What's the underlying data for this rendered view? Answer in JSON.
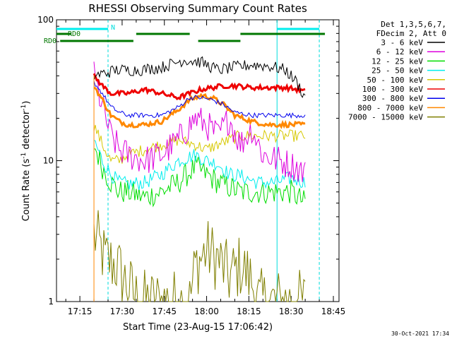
{
  "chart_data": {
    "type": "line",
    "title": "RHESSI Observing Summary Count Rates",
    "xlabel": "Start Time (23-Aug-15 17:06:42)",
    "ylabel": "Count Rate (s⁻¹ detector⁻¹)",
    "ylabel_main": "Count Rate (s",
    "ylabel_sup1": "-1",
    "ylabel_mid": " detector",
    "ylabel_sup2": "-1",
    "ylabel_end": ")",
    "y_scale": "log",
    "ylim": [
      1,
      100
    ],
    "xlim": [
      "17:06:42",
      "18:47:00"
    ],
    "x_ticks": [
      "17:15",
      "17:30",
      "17:45",
      "18:00",
      "18:15",
      "18:30",
      "18:45"
    ],
    "y_ticks": [
      "1",
      "10",
      "100"
    ],
    "legend_header": [
      "Det 1,3,5,6,7,",
      "FDecim 2, Att 0"
    ],
    "legend_position": "right",
    "footer_date": "30-Oct-2021 17:34",
    "markers": {
      "N": "N",
      "RD0a": "RD0",
      "RD0b": "RD0"
    },
    "series": [
      {
        "name": "3 - 6 keV",
        "color": "#000000",
        "key": "s1",
        "points": [
          [
            0,
            40
          ],
          [
            8,
            44
          ],
          [
            16,
            44
          ],
          [
            24,
            46
          ],
          [
            32,
            52
          ],
          [
            38,
            50
          ],
          [
            44,
            44
          ],
          [
            50,
            46
          ],
          [
            56,
            48
          ],
          [
            62,
            47
          ],
          [
            68,
            44
          ],
          [
            72,
            36
          ],
          [
            75,
            28
          ]
        ]
      },
      {
        "name": "6 - 12 keV",
        "color": "#dd00dd",
        "key": "s2",
        "points": [
          [
            0,
            40
          ],
          [
            3,
            24
          ],
          [
            6,
            15
          ],
          [
            9,
            12
          ],
          [
            12,
            11
          ],
          [
            18,
            10
          ],
          [
            24,
            11
          ],
          [
            30,
            14
          ],
          [
            36,
            20
          ],
          [
            40,
            18
          ],
          [
            44,
            15
          ],
          [
            48,
            20
          ],
          [
            52,
            13
          ],
          [
            56,
            17
          ],
          [
            60,
            11
          ],
          [
            66,
            10
          ],
          [
            72,
            9
          ],
          [
            75,
            8
          ]
        ]
      },
      {
        "name": "12 - 25 keV",
        "color": "#00dd00",
        "key": "s3",
        "points": [
          [
            0,
            13
          ],
          [
            3,
            9
          ],
          [
            6,
            7
          ],
          [
            9,
            6
          ],
          [
            12,
            6
          ],
          [
            18,
            5.5
          ],
          [
            24,
            6
          ],
          [
            30,
            7
          ],
          [
            36,
            9
          ],
          [
            40,
            8
          ],
          [
            44,
            7
          ],
          [
            48,
            6.5
          ],
          [
            52,
            6
          ],
          [
            58,
            6
          ],
          [
            64,
            6
          ],
          [
            70,
            6
          ],
          [
            75,
            5
          ]
        ]
      },
      {
        "name": "25 - 50 keV",
        "color": "#00eeee",
        "key": "s4",
        "points": [
          [
            0,
            14
          ],
          [
            3,
            10
          ],
          [
            6,
            8
          ],
          [
            9,
            7
          ],
          [
            12,
            6.8
          ],
          [
            18,
            7
          ],
          [
            24,
            8
          ],
          [
            30,
            10
          ],
          [
            36,
            11
          ],
          [
            40,
            10
          ],
          [
            44,
            9.5
          ],
          [
            48,
            8
          ],
          [
            52,
            7.8
          ],
          [
            58,
            7
          ],
          [
            64,
            7
          ],
          [
            70,
            7.5
          ],
          [
            75,
            7
          ]
        ]
      },
      {
        "name": "50 - 100 keV",
        "color": "#d6c800",
        "key": "s5",
        "points": [
          [
            0,
            18
          ],
          [
            3,
            13
          ],
          [
            6,
            10
          ],
          [
            9,
            10
          ],
          [
            12,
            11
          ],
          [
            18,
            12
          ],
          [
            24,
            13
          ],
          [
            30,
            14
          ],
          [
            36,
            13
          ],
          [
            40,
            12
          ],
          [
            44,
            13
          ],
          [
            48,
            14
          ],
          [
            52,
            15
          ],
          [
            58,
            15
          ],
          [
            64,
            15
          ],
          [
            70,
            15
          ],
          [
            75,
            15
          ]
        ]
      },
      {
        "name": "100 - 300 keV",
        "color": "#ee0000",
        "key": "s6",
        "points": [
          [
            0,
            40
          ],
          [
            3,
            34
          ],
          [
            6,
            30
          ],
          [
            9,
            30
          ],
          [
            12,
            30
          ],
          [
            18,
            32
          ],
          [
            24,
            30
          ],
          [
            30,
            28
          ],
          [
            34,
            30
          ],
          [
            38,
            32
          ],
          [
            42,
            33
          ],
          [
            46,
            34
          ],
          [
            50,
            34
          ],
          [
            56,
            33
          ],
          [
            62,
            33
          ],
          [
            68,
            33
          ],
          [
            72,
            32
          ],
          [
            75,
            31
          ]
        ]
      },
      {
        "name": "300 - 800 keV",
        "color": "#0000ee",
        "key": "s7",
        "points": [
          [
            0,
            36
          ],
          [
            3,
            30
          ],
          [
            6,
            24
          ],
          [
            9,
            22
          ],
          [
            12,
            21
          ],
          [
            18,
            21
          ],
          [
            24,
            21
          ],
          [
            30,
            24
          ],
          [
            34,
            28
          ],
          [
            38,
            28
          ],
          [
            42,
            27
          ],
          [
            46,
            25
          ],
          [
            50,
            22
          ],
          [
            56,
            21
          ],
          [
            62,
            21
          ],
          [
            68,
            21
          ],
          [
            72,
            21
          ],
          [
            75,
            21
          ]
        ]
      },
      {
        "name": "800 - 7000 keV",
        "color": "#ff8800",
        "key": "s8",
        "points": [
          [
            0,
            34
          ],
          [
            3,
            27
          ],
          [
            6,
            21
          ],
          [
            9,
            19
          ],
          [
            12,
            18
          ],
          [
            18,
            18
          ],
          [
            24,
            19
          ],
          [
            30,
            23
          ],
          [
            34,
            27
          ],
          [
            38,
            29
          ],
          [
            42,
            28
          ],
          [
            46,
            25
          ],
          [
            50,
            21
          ],
          [
            56,
            19
          ],
          [
            62,
            18
          ],
          [
            68,
            18
          ],
          [
            72,
            18
          ],
          [
            75,
            18
          ]
        ]
      },
      {
        "name": "7000 - 15000 keV",
        "color": "#7f7f00",
        "key": "s9",
        "points": [
          [
            0,
            3
          ],
          [
            4,
            2
          ],
          [
            8,
            1.8
          ],
          [
            12,
            1.3
          ],
          [
            16,
            1
          ],
          [
            34,
            1
          ],
          [
            36,
            1.8
          ],
          [
            40,
            2.3
          ],
          [
            44,
            2
          ],
          [
            48,
            1.5
          ],
          [
            52,
            1.8
          ],
          [
            56,
            1.4
          ],
          [
            58,
            1
          ],
          [
            75,
            1
          ]
        ]
      }
    ],
    "obs_bars": {
      "N_intervals": [
        [
          "17:06:42",
          "17:25:00"
        ],
        [
          "18:25:00",
          "18:40:00"
        ]
      ],
      "RD0_upper": [
        [
          "17:06:42",
          "17:12:00"
        ],
        [
          "17:35:00",
          "17:54:00"
        ],
        [
          "18:12:00",
          "18:42:00"
        ]
      ],
      "RD0_lower": [
        [
          "17:08:00",
          "17:34:00"
        ],
        [
          "17:57:00",
          "18:12:00"
        ]
      ]
    }
  }
}
